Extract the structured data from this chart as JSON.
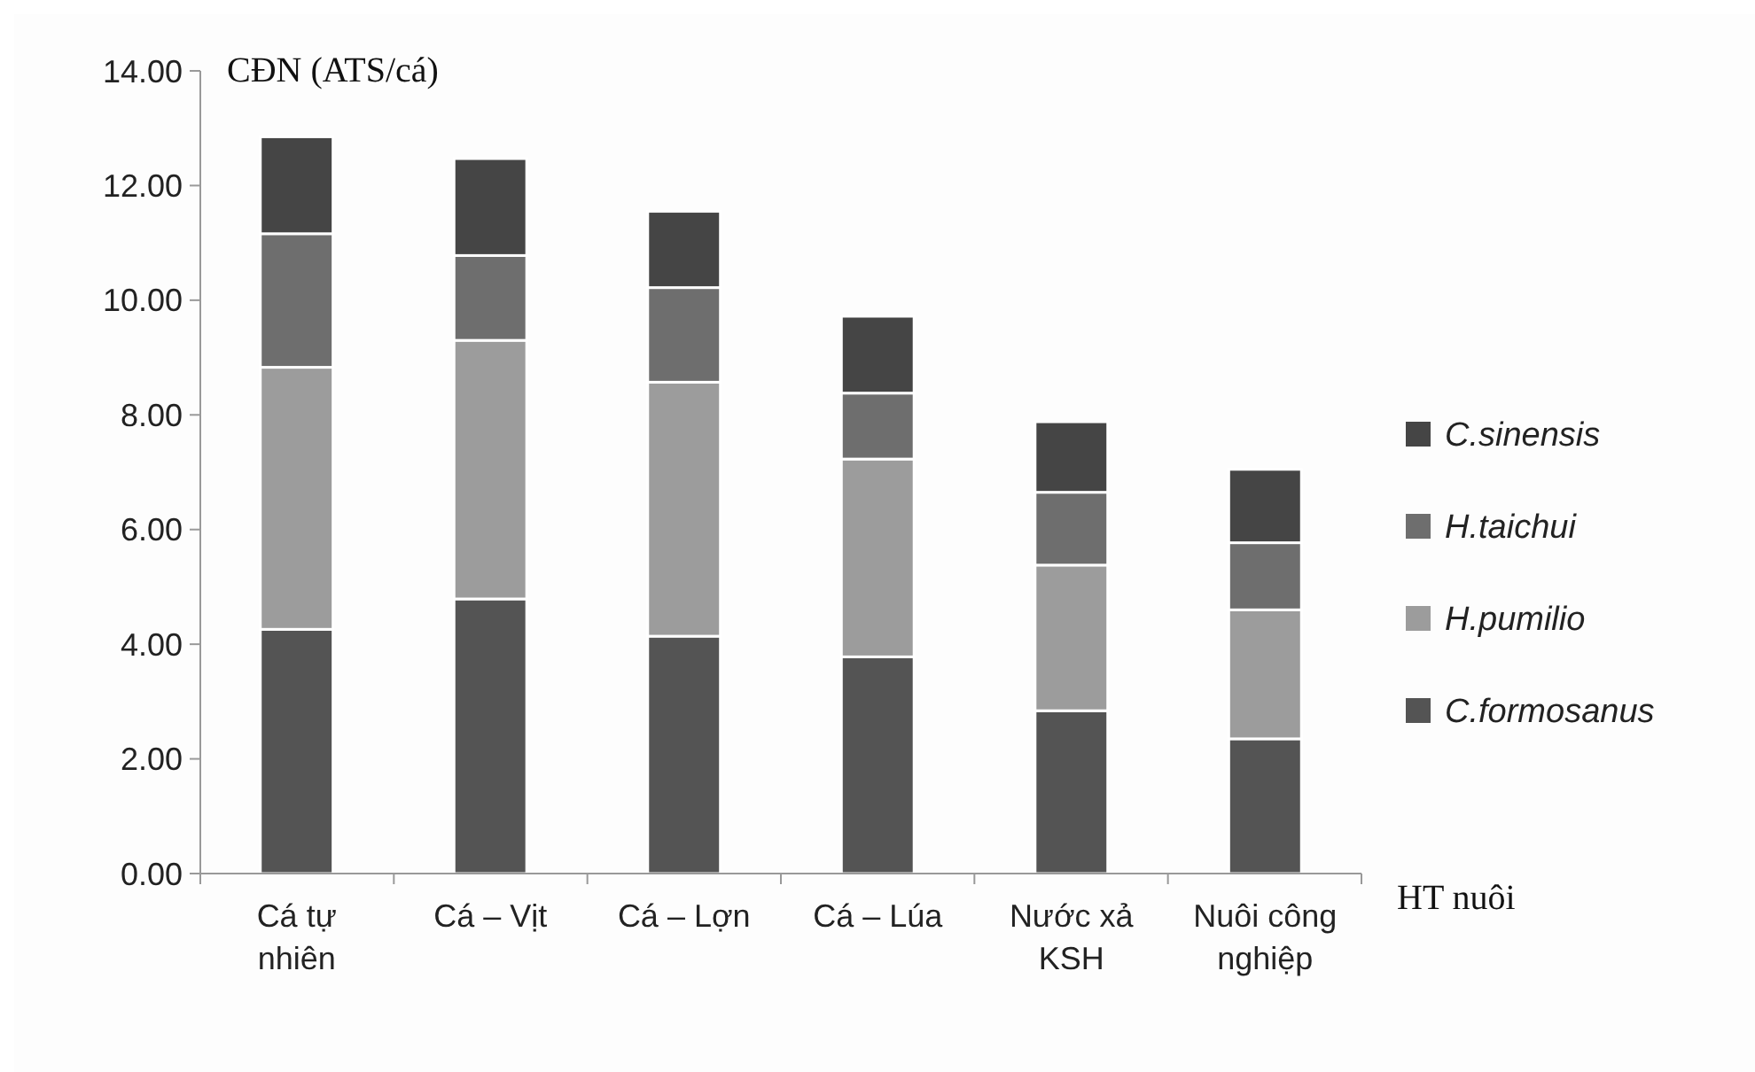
{
  "chart_data": {
    "type": "bar",
    "stacked": true,
    "ylabel": "CĐN (ATS/cá)",
    "xlabel": "HT nuôi",
    "categories": [
      "Cá tự nhiên",
      "Cá – Vịt",
      "Cá – Lợn",
      "Cá – Lúa",
      "Nước xả KSH",
      "Nuôi công nghiệp"
    ],
    "series": [
      {
        "name": "C.formosanus",
        "color": "#545454",
        "values": [
          4.26,
          4.79,
          4.14,
          3.78,
          2.84,
          2.35
        ]
      },
      {
        "name": "H.pumilio",
        "color": "#9c9c9c",
        "values": [
          4.57,
          4.51,
          4.43,
          3.45,
          2.54,
          2.25
        ]
      },
      {
        "name": "H.taichui",
        "color": "#6e6e6e",
        "values": [
          2.33,
          1.48,
          1.65,
          1.15,
          1.27,
          1.17
        ]
      },
      {
        "name": "C.sinensis",
        "color": "#454545",
        "values": [
          1.69,
          1.69,
          1.33,
          1.34,
          1.23,
          1.28
        ]
      }
    ],
    "ylim": [
      0,
      14
    ],
    "yticks": [
      {
        "value": 0,
        "label": "0.00"
      },
      {
        "value": 2,
        "label": "2.00"
      },
      {
        "value": 4,
        "label": "4.00"
      },
      {
        "value": 6,
        "label": "6.00"
      },
      {
        "value": 8,
        "label": "8.00"
      },
      {
        "value": 10,
        "label": "10.00"
      },
      {
        "value": 12,
        "label": "12.00"
      },
      {
        "value": 14,
        "label": "14.00"
      }
    ],
    "grid": false,
    "legend": "right"
  }
}
